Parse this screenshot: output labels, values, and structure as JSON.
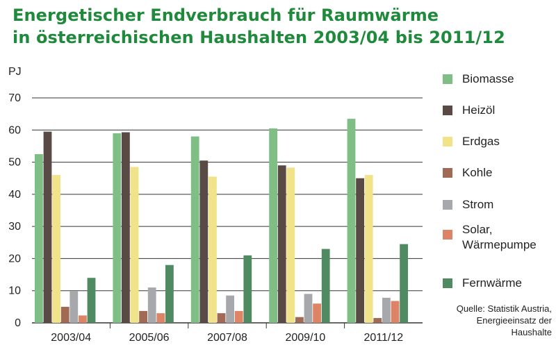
{
  "title": {
    "line1": "Energetischer Endverbrauch für Raumwärme",
    "line2": "in österreichischen Haushalten 2003/04 bis 2011/12"
  },
  "source_text": "Quelle: Statistik Austria,\nEnergieeinsatz der\nHaushalte",
  "colors": {
    "title": "#1f8a3b",
    "Biomasse": "#7fbf86",
    "Heizöl": "#5a4a46",
    "Erdgas": "#f0e38a",
    "Kohle": "#a06a55",
    "Strom": "#a7a8ab",
    "Solar, Wärmepumpe": "#de8466",
    "Fernwärme": "#4f8a62"
  },
  "chart_data": {
    "type": "bar",
    "categories": [
      "2003/04",
      "2005/06",
      "2007/08",
      "2009/10",
      "2011/12"
    ],
    "ylabel": "PJ",
    "ylim": [
      0,
      70
    ],
    "yticks": [
      0,
      10,
      20,
      30,
      40,
      50,
      60,
      70
    ],
    "grid": true,
    "legend_placement": "right",
    "series": [
      {
        "name": "Biomasse",
        "values": [
          52.5,
          59,
          58,
          60.5,
          63.5
        ]
      },
      {
        "name": "Heizöl",
        "values": [
          59.5,
          59.3,
          50.5,
          49,
          45
        ]
      },
      {
        "name": "Erdgas",
        "values": [
          46,
          48.5,
          45.5,
          48.3,
          46
        ]
      },
      {
        "name": "Kohle",
        "values": [
          5,
          3.7,
          3,
          1.8,
          1.5
        ]
      },
      {
        "name": "Strom",
        "values": [
          9.8,
          11,
          8.5,
          9,
          7.8
        ]
      },
      {
        "name": "Solar,\nWärmepumpe",
        "values": [
          2.3,
          3,
          3.7,
          6,
          6.8
        ]
      },
      {
        "name": "Fernwärme",
        "values": [
          14,
          18,
          21,
          23,
          24.5
        ]
      }
    ]
  }
}
